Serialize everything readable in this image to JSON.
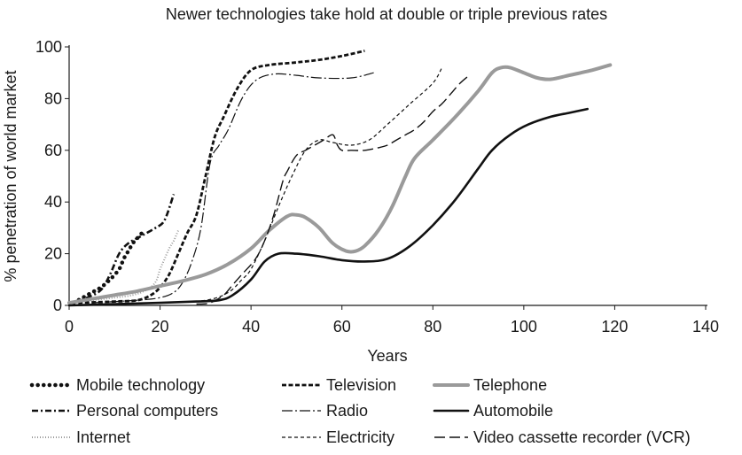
{
  "chart_data": {
    "type": "line",
    "title": "Newer technologies take hold at double or triple previous rates",
    "xlabel": "Years",
    "ylabel": "% penetration of world market",
    "xlim": [
      0,
      140
    ],
    "ylim": [
      0,
      100
    ],
    "xticks": [
      0,
      20,
      40,
      60,
      80,
      100,
      120,
      140
    ],
    "yticks": [
      0,
      20,
      40,
      60,
      80,
      100
    ],
    "grid": false,
    "legend_position": "bottom",
    "series": [
      {
        "name": "Mobile technology",
        "style": "dotted-heavy",
        "color": "#111111",
        "points": [
          [
            1,
            1
          ],
          [
            3,
            3
          ],
          [
            5,
            5
          ],
          [
            7,
            7
          ],
          [
            9,
            10
          ],
          [
            11,
            14
          ],
          [
            12,
            18
          ],
          [
            13,
            21
          ],
          [
            14,
            24
          ],
          [
            15,
            26
          ],
          [
            16,
            28
          ]
        ]
      },
      {
        "name": "Personal computers",
        "style": "dash-dot",
        "color": "#111111",
        "points": [
          [
            1,
            1
          ],
          [
            4,
            3
          ],
          [
            7,
            6
          ],
          [
            9,
            12
          ],
          [
            11,
            20
          ],
          [
            13,
            24
          ],
          [
            16,
            27
          ],
          [
            19,
            30
          ],
          [
            21,
            33
          ],
          [
            23,
            43
          ]
        ]
      },
      {
        "name": "Internet",
        "style": "dotted-gray",
        "color": "#999999",
        "points": [
          [
            0,
            1
          ],
          [
            5,
            2
          ],
          [
            10,
            3
          ],
          [
            14,
            4
          ],
          [
            17,
            6
          ],
          [
            19,
            9
          ],
          [
            20,
            14
          ],
          [
            21,
            18
          ],
          [
            22,
            22
          ],
          [
            23,
            25
          ],
          [
            24,
            29
          ]
        ]
      },
      {
        "name": "Television",
        "style": "dash",
        "color": "#111111",
        "points": [
          [
            2,
            1
          ],
          [
            10,
            1.5
          ],
          [
            15,
            2
          ],
          [
            18,
            4
          ],
          [
            20,
            7
          ],
          [
            22,
            12
          ],
          [
            24,
            20
          ],
          [
            26,
            28
          ],
          [
            28,
            35
          ],
          [
            30,
            50
          ],
          [
            32,
            65
          ],
          [
            34,
            73
          ],
          [
            37,
            84
          ],
          [
            40,
            91
          ],
          [
            44,
            93
          ],
          [
            50,
            94
          ],
          [
            55,
            95
          ],
          [
            60,
            96.5
          ],
          [
            65,
            98.5
          ]
        ]
      },
      {
        "name": "Radio",
        "style": "dash-dot-long",
        "color": "#111111",
        "points": [
          [
            5,
            1
          ],
          [
            15,
            2
          ],
          [
            20,
            3
          ],
          [
            23,
            5
          ],
          [
            25,
            9
          ],
          [
            27,
            17
          ],
          [
            29,
            30
          ],
          [
            31,
            55
          ],
          [
            33,
            62
          ],
          [
            35,
            68
          ],
          [
            38,
            80
          ],
          [
            41,
            87
          ],
          [
            45,
            89.5
          ],
          [
            50,
            89
          ],
          [
            55,
            88
          ],
          [
            62,
            88
          ],
          [
            67,
            90
          ]
        ]
      },
      {
        "name": "Electricity",
        "style": "short-dash",
        "color": "#111111",
        "points": [
          [
            10,
            0.5
          ],
          [
            20,
            1
          ],
          [
            30,
            2
          ],
          [
            35,
            5
          ],
          [
            38,
            10
          ],
          [
            40,
            14
          ],
          [
            43,
            25
          ],
          [
            46,
            38
          ],
          [
            49,
            50
          ],
          [
            52,
            60
          ],
          [
            55,
            64
          ],
          [
            58,
            63
          ],
          [
            62,
            62
          ],
          [
            66,
            64
          ],
          [
            70,
            70
          ],
          [
            75,
            78
          ],
          [
            80,
            86
          ],
          [
            82,
            92
          ]
        ]
      },
      {
        "name": "Telephone",
        "style": "thick-gray",
        "color": "#9a9a9a",
        "points": [
          [
            0,
            1
          ],
          [
            5,
            2.5
          ],
          [
            10,
            4
          ],
          [
            15,
            5.5
          ],
          [
            20,
            7.5
          ],
          [
            25,
            9.5
          ],
          [
            30,
            12
          ],
          [
            35,
            16
          ],
          [
            40,
            22
          ],
          [
            44,
            29
          ],
          [
            48,
            34.5
          ],
          [
            50,
            35
          ],
          [
            52,
            34
          ],
          [
            55,
            30
          ],
          [
            58,
            24
          ],
          [
            61,
            21
          ],
          [
            63,
            21
          ],
          [
            65,
            23
          ],
          [
            68,
            29
          ],
          [
            71,
            38
          ],
          [
            74,
            50
          ],
          [
            76,
            57
          ],
          [
            80,
            64
          ],
          [
            85,
            73
          ],
          [
            90,
            83
          ],
          [
            93,
            90
          ],
          [
            95,
            92
          ],
          [
            97,
            92
          ],
          [
            100,
            90
          ],
          [
            103,
            88
          ],
          [
            106,
            87.5
          ],
          [
            110,
            89
          ],
          [
            115,
            91
          ],
          [
            119,
            93
          ]
        ]
      },
      {
        "name": "Automobile",
        "style": "thick-black",
        "color": "#111111",
        "points": [
          [
            0,
            0
          ],
          [
            10,
            0.5
          ],
          [
            20,
            1
          ],
          [
            28,
            1.5
          ],
          [
            33,
            2
          ],
          [
            36,
            4
          ],
          [
            40,
            10
          ],
          [
            43,
            17
          ],
          [
            46,
            20
          ],
          [
            50,
            20
          ],
          [
            55,
            19
          ],
          [
            60,
            17.5
          ],
          [
            65,
            17
          ],
          [
            70,
            18
          ],
          [
            75,
            23
          ],
          [
            80,
            31
          ],
          [
            85,
            41
          ],
          [
            90,
            53
          ],
          [
            93,
            60
          ],
          [
            97,
            66
          ],
          [
            101,
            70
          ],
          [
            106,
            73
          ],
          [
            110,
            74.5
          ],
          [
            114,
            76
          ]
        ]
      },
      {
        "name": "Video cassette recorder (VCR)",
        "style": "long-dash",
        "color": "#111111",
        "points": [
          [
            28,
            0.5
          ],
          [
            31,
            1
          ],
          [
            34,
            4
          ],
          [
            36,
            8
          ],
          [
            38,
            12
          ],
          [
            41,
            18
          ],
          [
            43,
            25
          ],
          [
            45,
            35
          ],
          [
            47,
            48
          ],
          [
            48,
            52
          ],
          [
            50,
            58
          ],
          [
            52,
            60
          ],
          [
            54,
            62
          ],
          [
            56,
            64
          ],
          [
            58,
            66
          ],
          [
            59,
            62
          ],
          [
            60,
            60
          ],
          [
            62,
            60
          ],
          [
            65,
            60
          ],
          [
            68,
            61
          ],
          [
            70,
            62
          ],
          [
            72,
            64
          ],
          [
            74,
            66
          ],
          [
            76,
            68
          ],
          [
            78,
            71
          ],
          [
            80,
            75
          ],
          [
            82,
            78
          ],
          [
            84,
            82
          ],
          [
            86,
            86
          ],
          [
            88,
            89
          ]
        ]
      }
    ]
  }
}
